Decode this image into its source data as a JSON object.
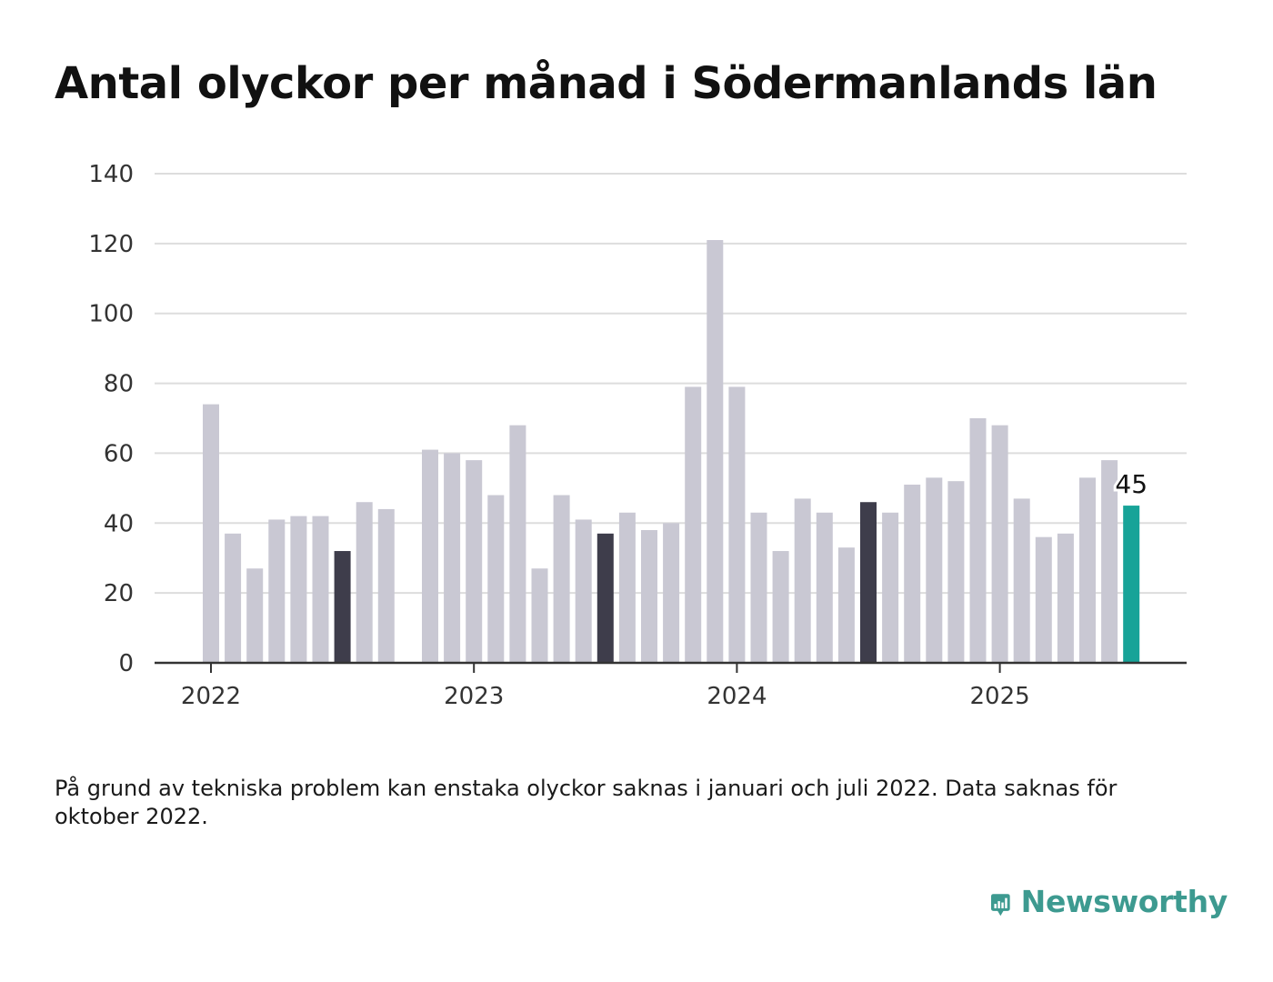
{
  "title": "Antal olyckor per månad i Södermanlands län",
  "footnote": "På grund av tekniska problem kan enstaka olyckor saknas i januari och juli 2022. Data saknas för oktober 2022.",
  "brand": {
    "name": "Newsworthy",
    "color": "#3d9a90",
    "icon": "bar-chart-speech-bubble-icon"
  },
  "colors": {
    "default": "#c9c8d3",
    "highlight": "#3e3d4b",
    "latest": "#17a398",
    "grid": "#dddddd",
    "axis": "#333333",
    "text": "#333333"
  },
  "chart_data": {
    "type": "bar",
    "title": "Antal olyckor per månad i Södermanlands län",
    "xlabel": "",
    "ylabel": "",
    "ylim": [
      0,
      140
    ],
    "yticks": [
      0,
      20,
      40,
      60,
      80,
      100,
      120,
      140
    ],
    "xticks": [
      "2022",
      "2023",
      "2024",
      "2025"
    ],
    "grid": true,
    "start": "2022-01",
    "values": [
      74,
      37,
      27,
      41,
      42,
      42,
      32,
      46,
      44,
      null,
      61,
      60,
      58,
      48,
      68,
      27,
      48,
      41,
      37,
      43,
      38,
      40,
      79,
      121,
      79,
      43,
      32,
      47,
      43,
      33,
      46,
      43,
      51,
      53,
      52,
      70,
      68,
      47,
      36,
      37,
      53,
      58,
      45
    ],
    "highlighted_months": [
      "2022-07",
      "2023-07",
      "2024-07"
    ],
    "latest": {
      "month": "2025-07",
      "value": 45,
      "label": "45"
    }
  }
}
